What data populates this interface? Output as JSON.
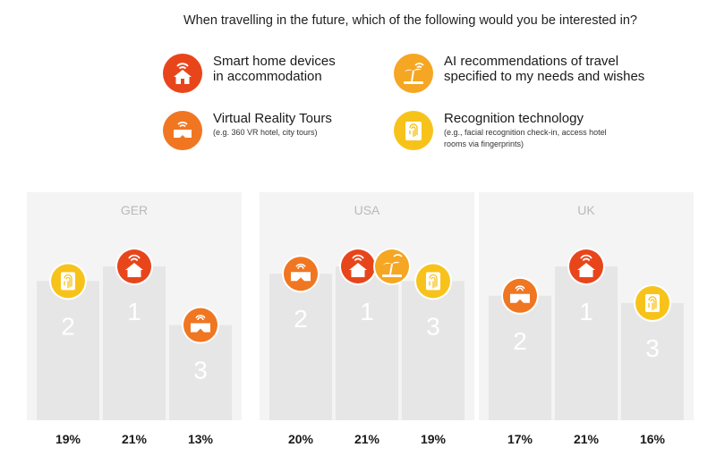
{
  "chart_data": {
    "type": "bar",
    "title": "When travelling in the future, which of the following would you be interested in?",
    "legend": [
      {
        "key": "smart_home",
        "label_line1": "Smart home devices",
        "label_line2": "in accommodation",
        "note_line1": "",
        "note_line2": "",
        "color": "#e8451b",
        "icon": "house-wifi-icon"
      },
      {
        "key": "ai_reco",
        "label_line1": "AI recommendations of travel",
        "label_line2": "specified to my needs and wishes",
        "note_line1": "",
        "note_line2": "",
        "color": "#f5a623",
        "icon": "beach-wifi-icon"
      },
      {
        "key": "vr_tours",
        "label_line1": "Virtual Reality Tours",
        "label_line2": "",
        "note_line1": "(e.g. 360 VR hotel, city tours)",
        "note_line2": "",
        "color": "#f07622",
        "icon": "vr-headset-icon"
      },
      {
        "key": "recognition",
        "label_line1": "Recognition technology",
        "label_line2": "",
        "note_line1": "(e.g., facial recognition check-in, access hotel",
        "note_line2": "rooms via fingerprints)",
        "color": "#f7c31b",
        "icon": "fingerprint-icon"
      }
    ],
    "groups": [
      {
        "name": "GER",
        "bars": [
          {
            "rank": "2",
            "value": 19,
            "label": "19%",
            "icons": [
              "recognition"
            ]
          },
          {
            "rank": "1",
            "value": 21,
            "label": "21%",
            "icons": [
              "smart_home"
            ]
          },
          {
            "rank": "3",
            "value": 13,
            "label": "13%",
            "icons": [
              "vr_tours"
            ]
          }
        ]
      },
      {
        "name": "USA",
        "bars": [
          {
            "rank": "2",
            "value": 20,
            "label": "20%",
            "icons": [
              "vr_tours"
            ]
          },
          {
            "rank": "1",
            "value": 21,
            "label": "21%",
            "icons": [
              "smart_home",
              "ai_reco"
            ]
          },
          {
            "rank": "3",
            "value": 19,
            "label": "19%",
            "icons": [
              "recognition"
            ]
          }
        ]
      },
      {
        "name": "UK",
        "bars": [
          {
            "rank": "2",
            "value": 17,
            "label": "17%",
            "icons": [
              "vr_tours"
            ]
          },
          {
            "rank": "1",
            "value": 21,
            "label": "21%",
            "icons": [
              "smart_home"
            ]
          },
          {
            "rank": "3",
            "value": 16,
            "label": "16%",
            "icons": [
              "recognition"
            ]
          }
        ]
      }
    ],
    "colors": {
      "panel": "#f4f4f4",
      "bar": "#e6e6e6",
      "rank_text": "#ffffff",
      "group_label": "#b9b9b9"
    }
  }
}
